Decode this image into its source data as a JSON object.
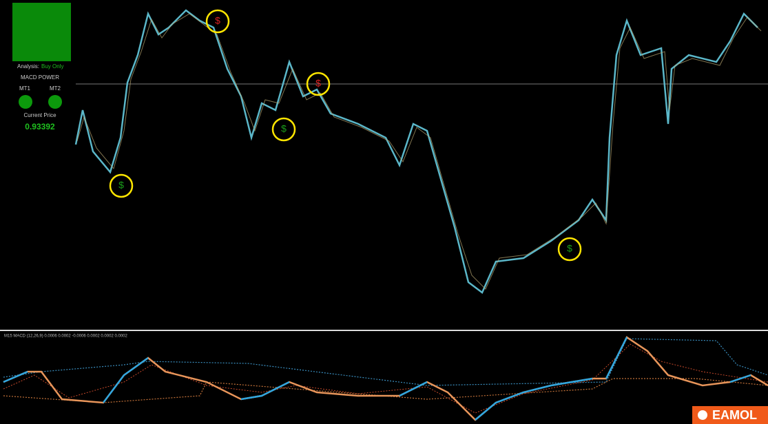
{
  "panel": {
    "analysis_label": "Analysis:",
    "analysis_value": "Buy Only",
    "title": "MACD POWER",
    "mt1": "MT1",
    "mt2": "MT2",
    "price_label": "Current Price",
    "price": "0.93392"
  },
  "indicator": {
    "label": "M15 MACD (12,26,9) 0.0006 0.0002 -0.0006 0.0002 0.0002 0.0002"
  },
  "logo": {
    "text": "EAMOL"
  }
}
